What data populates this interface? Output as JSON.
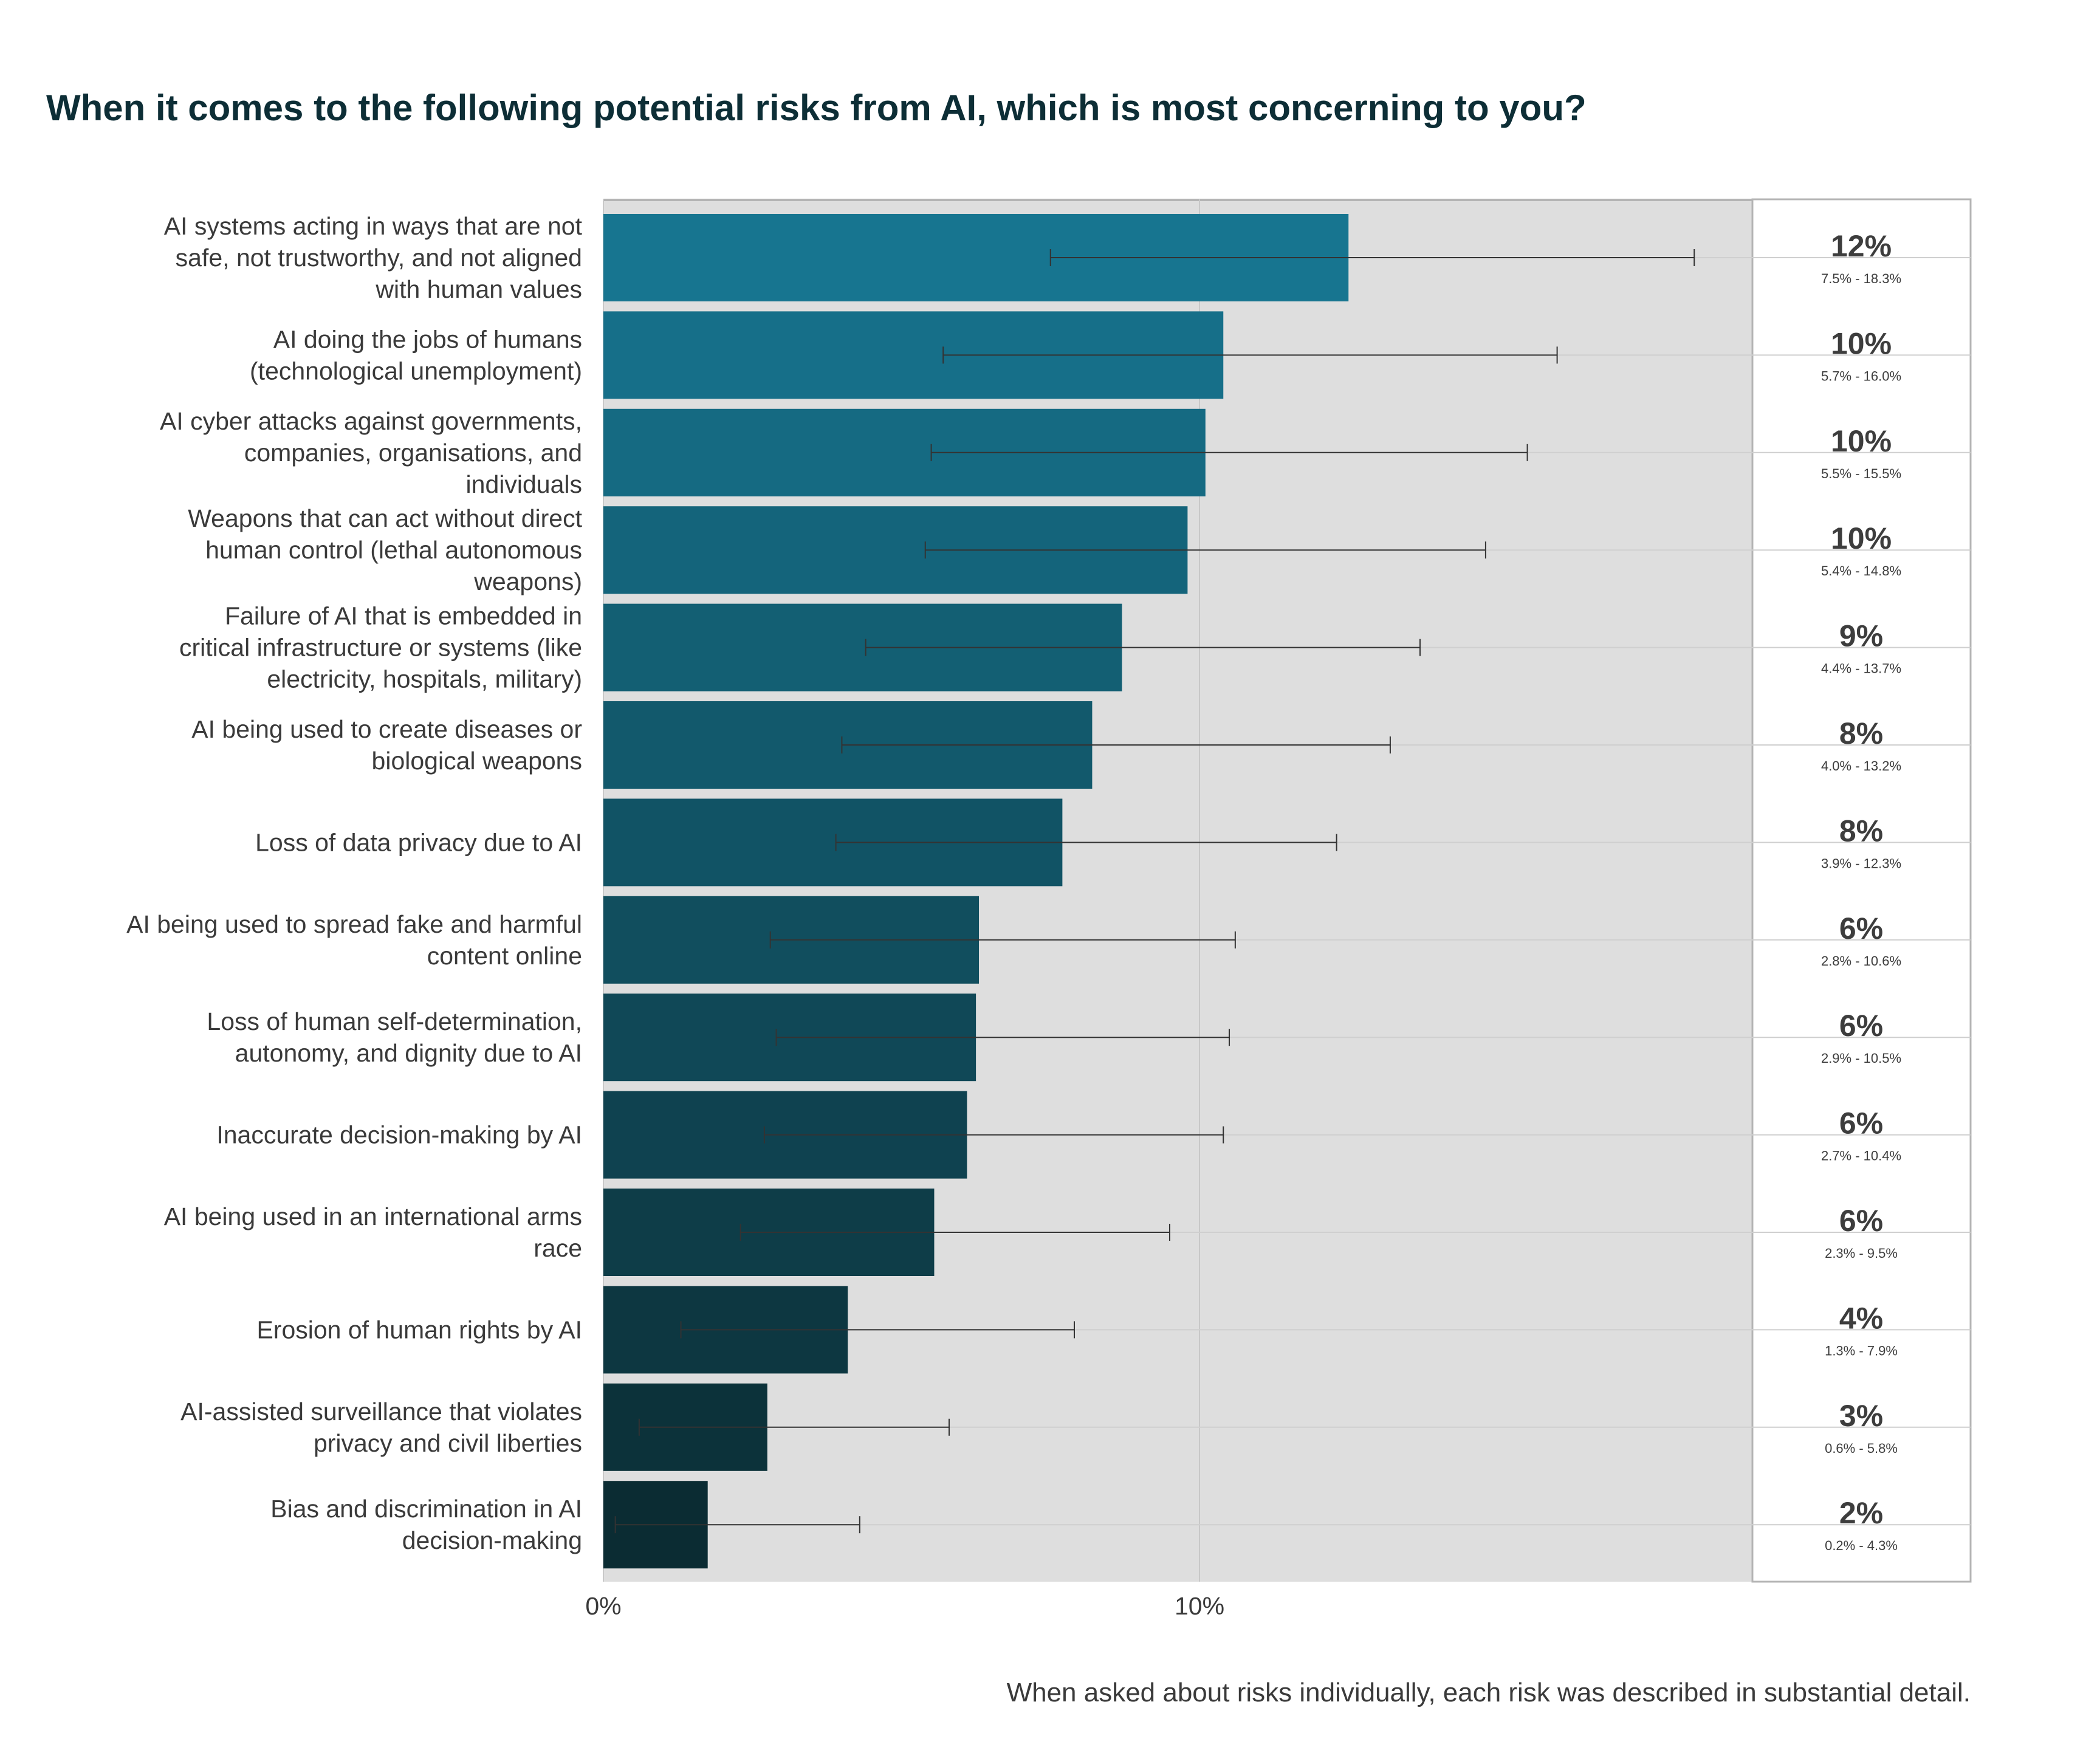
{
  "chart_data": {
    "type": "bar",
    "orientation": "horizontal",
    "title": "When it comes to the following potential risks from AI, which is most concerning to you?",
    "footnote": "When asked about risks individually, each risk was described in substantial detail.",
    "xlim": [
      0,
      19.3
    ],
    "x_ticks": [
      "0%",
      "10%"
    ],
    "x_tick_values": [
      0,
      10
    ],
    "grid": true,
    "colors": {
      "top_bar": "#177590",
      "bottom_bar": "#0b2c33",
      "plot_bg": "#dedede",
      "title": "#0d2e36"
    },
    "categories": [
      [
        "AI systems acting in ways that are not",
        "safe, not trustworthy, and not aligned",
        "with human values"
      ],
      [
        "AI doing the jobs of humans",
        "(technological unemployment)"
      ],
      [
        "AI cyber attacks against governments,",
        "companies, organisations, and",
        "individuals"
      ],
      [
        "Weapons that can act without direct",
        "human control (lethal autonomous",
        "weapons)"
      ],
      [
        "Failure of AI that is embedded in",
        "critical infrastructure or systems (like",
        "electricity, hospitals, military)"
      ],
      [
        "AI being used to create diseases or",
        "biological weapons"
      ],
      [
        "Loss of data privacy due to AI"
      ],
      [
        "AI being used to spread fake and harmful",
        "content online"
      ],
      [
        "Loss of human self-determination,",
        "autonomy, and dignity due to AI"
      ],
      [
        "Inaccurate decision-making by AI"
      ],
      [
        "AI being used in an international arms",
        "race"
      ],
      [
        "Erosion of human rights by AI"
      ],
      [
        "AI-assisted surveillance that violates",
        "privacy and civil liberties"
      ],
      [
        "Bias and discrimination in AI",
        "decision-making"
      ]
    ],
    "values": [
      12.5,
      10.4,
      10.1,
      9.8,
      8.7,
      8.2,
      7.7,
      6.3,
      6.25,
      6.1,
      5.55,
      4.1,
      2.75,
      1.75
    ],
    "ci_low": [
      7.5,
      5.7,
      5.5,
      5.4,
      4.4,
      4.0,
      3.9,
      2.8,
      2.9,
      2.7,
      2.3,
      1.3,
      0.6,
      0.2
    ],
    "ci_high": [
      18.3,
      16.0,
      15.5,
      14.8,
      13.7,
      13.2,
      12.3,
      10.6,
      10.5,
      10.4,
      9.5,
      7.9,
      5.8,
      4.3
    ],
    "labels_big": [
      "12%",
      "10%",
      "10%",
      "10%",
      "9%",
      "8%",
      "8%",
      "6%",
      "6%",
      "6%",
      "6%",
      "4%",
      "3%",
      "2%"
    ],
    "labels_range": [
      "7.5% - 18.3%",
      "5.7% - 16.0%",
      "5.5% - 15.5%",
      "5.4% - 14.8%",
      "4.4% - 13.7%",
      "4.0% - 13.2%",
      "3.9% - 12.3%",
      "2.8% - 10.6%",
      "2.9% - 10.5%",
      "2.7% - 10.4%",
      "2.3% - 9.5%",
      "1.3% - 7.9%",
      "0.6% - 5.8%",
      "0.2% - 4.3%"
    ]
  }
}
